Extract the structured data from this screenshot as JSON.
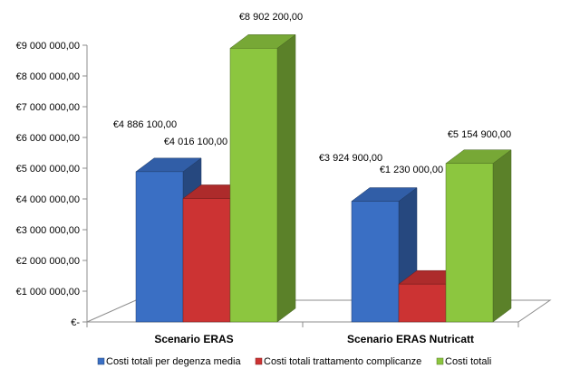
{
  "chart_data": {
    "type": "bar",
    "title": "",
    "xlabel": "",
    "ylabel": "",
    "categories": [
      "Scenario ERAS",
      "Scenario ERAS Nutricatt"
    ],
    "series": [
      {
        "name": "Costi totali per degenza media",
        "color": "#3a6fc4",
        "values": [
          4886100,
          3924900
        ],
        "labels": [
          "€4 886 100,00",
          "€3 924 900,00"
        ]
      },
      {
        "name": "Costi totali trattamento complicanze",
        "color": "#cc3333",
        "values": [
          4016100,
          1230000
        ],
        "labels": [
          "€4 016 100,00",
          "€1 230 000,00"
        ]
      },
      {
        "name": "Costi totali",
        "color": "#8cc63f",
        "values": [
          8902200,
          5154900
        ],
        "labels": [
          "€8 902 200,00",
          "€5 154 900,00"
        ]
      }
    ],
    "ylim": [
      0,
      9000000
    ],
    "y_ticks": [
      0,
      1000000,
      2000000,
      3000000,
      4000000,
      5000000,
      6000000,
      7000000,
      8000000,
      9000000
    ],
    "y_tick_labels": [
      "€-",
      "€1 000 000,00",
      "€2 000 000,00",
      "€3 000 000,00",
      "€4 000 000,00",
      "€5 000 000,00",
      "€6 000 000,00",
      "€7 000 000,00",
      "€8 000 000,00",
      "€9 000 000,00"
    ],
    "grid": false,
    "legend_position": "bottom",
    "style": "3d-column"
  }
}
